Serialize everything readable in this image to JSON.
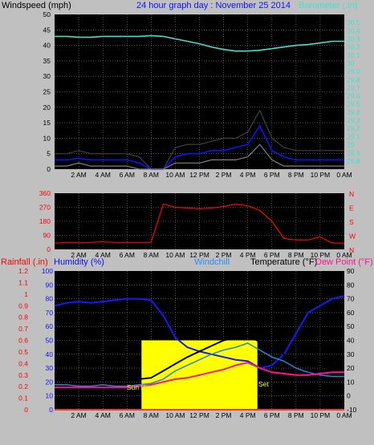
{
  "header": {
    "windspeed_label": "Windspeed (mph)",
    "title": "24 hour graph day : November 25 2014",
    "barometer_label": "Barometer (.in)"
  },
  "panel3_labels": {
    "rainfall": "Rainfall (.in)",
    "humidity": "Humidity (%)",
    "windchill": "Windchill",
    "temperature": "Temperature (°F)",
    "dewpoint": "Dew Point (°F)",
    "sunrise": "Sun Rise",
    "sunset": "Set"
  },
  "colors": {
    "background": "#c0c0c0",
    "plot": "#000000",
    "wind_gust": "#000000",
    "wind_avg": "#1010ff",
    "wind_min": "#808080",
    "barometer": "#40e0d0",
    "direction": "#ff0000",
    "humidity": "#1818ff",
    "temperature": "#000000",
    "windchill": "#2288dd",
    "dewpoint": "#ff1493",
    "solar": "#ffff00",
    "rain": "#ff3030"
  },
  "time_ticks": [
    "2 AM",
    "4 AM",
    "6 AM",
    "8 AM",
    "10 AM",
    "12 PM",
    "2 PM",
    "4 PM",
    "6 PM",
    "8 PM",
    "10 PM",
    "0 AM"
  ],
  "chart_data": [
    {
      "type": "line",
      "name": "wind_barometer",
      "title": "24 hour graph day : November 25 2014",
      "ylabel": "Windspeed (mph)",
      "ylim": [
        0,
        50
      ],
      "yticks": [
        0,
        5,
        10,
        15,
        20,
        25,
        30,
        35,
        40,
        45,
        50
      ],
      "y2label": "Barometer (.in)",
      "y2lim": [
        28.7,
        30.6
      ],
      "y2ticks": [
        "28.8",
        "28.9",
        "29",
        "29.1",
        "29.2",
        "29.3",
        "29.4",
        "29.5",
        "29.6",
        "29.7",
        "29.8",
        "29.9",
        "30",
        "30.1",
        "30.2",
        "30.3",
        "30.4",
        "30.5"
      ],
      "x": [
        0,
        1,
        2,
        3,
        4,
        5,
        6,
        7,
        8,
        9,
        10,
        11,
        12,
        13,
        14,
        15,
        16,
        17,
        18,
        19,
        20,
        21,
        22,
        23,
        24
      ],
      "series": [
        {
          "key": "gust",
          "values": [
            5,
            5,
            6,
            5,
            5,
            5,
            5,
            4,
            0,
            0,
            7,
            8,
            8,
            9,
            10,
            10,
            12,
            19,
            10,
            7,
            6,
            6,
            6,
            6,
            6
          ]
        },
        {
          "key": "avg",
          "values": [
            3,
            3,
            3.5,
            3,
            3,
            3,
            3,
            2,
            0,
            0,
            4,
            5,
            5,
            6,
            6,
            7,
            8,
            14,
            6,
            4,
            3,
            3,
            3,
            3,
            3
          ]
        },
        {
          "key": "min",
          "values": [
            1,
            1,
            2,
            1,
            1,
            1,
            1,
            0,
            0,
            0,
            2,
            2,
            2,
            3,
            3,
            3,
            4,
            8,
            3,
            1,
            1,
            1,
            1,
            1,
            1
          ]
        },
        {
          "key": "barometer",
          "axis": "y2",
          "values": [
            30.33,
            30.33,
            30.32,
            30.32,
            30.33,
            30.33,
            30.33,
            30.33,
            30.34,
            30.33,
            30.3,
            30.27,
            30.24,
            30.2,
            30.17,
            30.15,
            30.15,
            30.16,
            30.18,
            30.2,
            30.22,
            30.23,
            30.25,
            30.27,
            30.27
          ]
        }
      ]
    },
    {
      "type": "line",
      "name": "wind_direction",
      "ylim": [
        0,
        360
      ],
      "yticks": [
        0,
        90,
        180,
        270,
        360
      ],
      "right_labels": [
        "N",
        "W",
        "S",
        "E",
        "N"
      ],
      "x": [
        0,
        1,
        2,
        3,
        4,
        5,
        6,
        7,
        8,
        9,
        10,
        11,
        12,
        13,
        14,
        15,
        16,
        17,
        18,
        19,
        20,
        21,
        22,
        23,
        24
      ],
      "values": [
        40,
        45,
        42,
        45,
        48,
        45,
        45,
        45,
        45,
        290,
        270,
        265,
        260,
        265,
        275,
        290,
        280,
        250,
        180,
        70,
        60,
        60,
        80,
        40,
        40
      ]
    },
    {
      "type": "line",
      "name": "weather",
      "ylim_rain": [
        0,
        1.2
      ],
      "rain_ticks": [
        "0",
        "0.1",
        "0.2",
        "0.3",
        "0.4",
        "0.5",
        "0.6",
        "0.7",
        "0.8",
        "0.9",
        "1",
        "1.1",
        "1.2"
      ],
      "ylim_humidity": [
        0,
        100
      ],
      "humidity_ticks": [
        "0",
        "10",
        "20",
        "30",
        "40",
        "50",
        "60",
        "70",
        "80",
        "90",
        "100"
      ],
      "ylim_temp": [
        -10,
        90
      ],
      "temp_ticks": [
        "-10",
        "0",
        "10",
        "20",
        "30",
        "40",
        "50",
        "60",
        "70",
        "80",
        "90"
      ],
      "x": [
        0,
        1,
        2,
        3,
        4,
        5,
        6,
        7,
        8,
        9,
        10,
        11,
        12,
        13,
        14,
        15,
        16,
        17,
        18,
        19,
        20,
        21,
        22,
        23,
        24
      ],
      "series": [
        {
          "key": "humidity",
          "values": [
            75,
            77,
            78,
            77,
            78,
            79,
            80,
            80,
            79,
            68,
            52,
            45,
            42,
            40,
            38,
            36,
            35,
            30,
            32,
            40,
            55,
            70,
            75,
            80,
            82
          ]
        },
        {
          "key": "temperature",
          "values": [
            12,
            12,
            11,
            11,
            11,
            11,
            11,
            12,
            13,
            18,
            23,
            28,
            32,
            36,
            40,
            42,
            43,
            39,
            34,
            30,
            25,
            22,
            21,
            20,
            20
          ]
        },
        {
          "key": "windchill",
          "values": [
            8,
            8,
            7,
            7,
            8,
            7,
            7,
            8,
            9,
            12,
            18,
            22,
            26,
            30,
            33,
            35,
            38,
            33,
            28,
            25,
            20,
            17,
            15,
            14,
            14
          ]
        },
        {
          "key": "dewpoint",
          "values": [
            6,
            6,
            6,
            6,
            6,
            6,
            6,
            7,
            8,
            10,
            12,
            13,
            15,
            17,
            19,
            22,
            24,
            20,
            17,
            16,
            15,
            15,
            16,
            17,
            17
          ]
        },
        {
          "key": "solar",
          "values": [
            0,
            0,
            0,
            0,
            0,
            0,
            0,
            0,
            0,
            50,
            50,
            50,
            50,
            50,
            50,
            50,
            50,
            0,
            0,
            0,
            0,
            0,
            0,
            0,
            0
          ]
        },
        {
          "key": "rainfall",
          "values": [
            0,
            0,
            0,
            0,
            0,
            0,
            0,
            0,
            0,
            0,
            0,
            0,
            0,
            0,
            0,
            0,
            0,
            0,
            0,
            0,
            0,
            0,
            0,
            0,
            0
          ]
        }
      ],
      "sunrise_hour": 7.2,
      "sunset_hour": 16.8
    }
  ]
}
